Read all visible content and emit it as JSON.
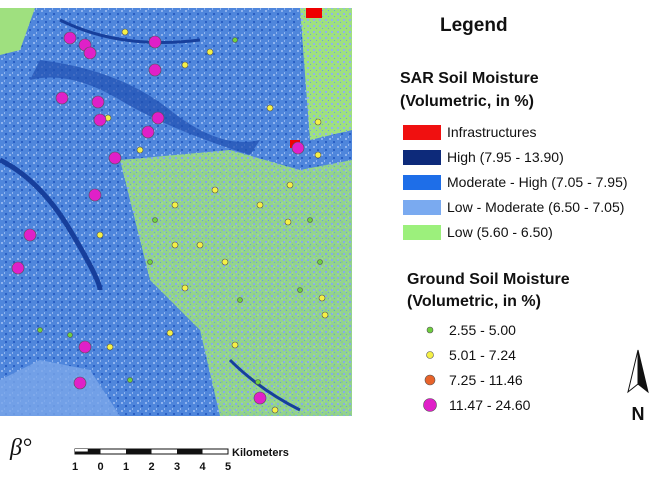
{
  "legend": {
    "title": "Legend",
    "sar": {
      "title": "SAR Soil Moisture",
      "subtitle": "(Volumetric, in %)",
      "items": [
        "Infrastructures",
        "High (7.95 - 13.90)",
        "Moderate - High (7.05 - 7.95)",
        "Low - Moderate (6.50 - 7.05)",
        "Low (5.60 - 6.50)"
      ]
    },
    "ground": {
      "title": "Ground Soil Moisture",
      "subtitle": "(Volumetric, in %)",
      "items": [
        "2.55 - 5.00",
        "5.01 - 7.24",
        "7.25 - 11.46",
        "11.47 - 24.60"
      ]
    }
  },
  "scale": {
    "unit": "Kilometers",
    "labels": [
      "1",
      "0",
      "1",
      "2",
      "3",
      "4",
      "5"
    ]
  },
  "north": "N",
  "logo": "β°"
}
